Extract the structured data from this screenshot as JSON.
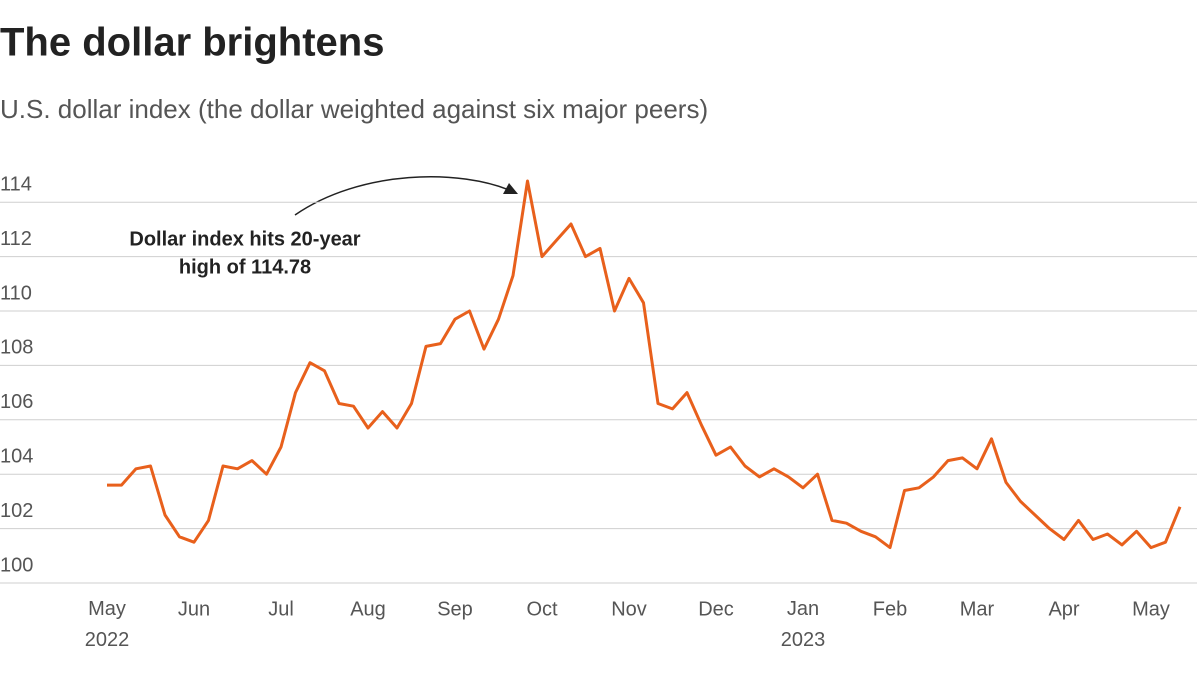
{
  "chart_data": {
    "type": "line",
    "title": "The dollar brightens",
    "subtitle": "U.S. dollar index (the dollar weighted against six major peers)",
    "annotation": [
      "Dollar index hits 20-year",
      "high of 114.78"
    ],
    "categories": [
      "May 2022",
      null,
      null,
      null,
      null,
      null,
      "Jun",
      null,
      null,
      null,
      null,
      null,
      "Jul",
      null,
      null,
      null,
      null,
      null,
      "Aug",
      null,
      null,
      null,
      null,
      null,
      "Sep",
      null,
      null,
      null,
      null,
      null,
      "Oct",
      null,
      null,
      null,
      null,
      null,
      "Nov",
      null,
      null,
      null,
      null,
      null,
      "Dec",
      null,
      null,
      null,
      null,
      null,
      "Jan 2023",
      null,
      null,
      null,
      null,
      null,
      "Feb",
      null,
      null,
      null,
      null,
      null,
      "Mar",
      null,
      null,
      null,
      null,
      null,
      "Apr",
      null,
      null,
      null,
      null,
      null,
      "May",
      null,
      null
    ],
    "series": [
      {
        "name": "U.S. dollar index",
        "color": "#e8601c",
        "values": [
          103.6,
          103.6,
          104.2,
          104.3,
          102.5,
          101.7,
          101.5,
          102.3,
          104.3,
          104.2,
          104.5,
          104.0,
          105.0,
          107.0,
          108.1,
          107.8,
          106.6,
          106.5,
          105.7,
          106.3,
          105.7,
          106.6,
          108.7,
          108.8,
          109.7,
          110.0,
          108.6,
          109.7,
          111.3,
          114.78,
          112.0,
          112.6,
          113.2,
          112.0,
          112.3,
          110.0,
          111.2,
          110.3,
          106.6,
          106.4,
          107.0,
          105.8,
          104.7,
          105.0,
          104.3,
          103.9,
          104.2,
          103.9,
          103.5,
          104.0,
          102.3,
          102.2,
          101.9,
          101.7,
          101.3,
          103.4,
          103.5,
          103.9,
          104.5,
          104.6,
          104.2,
          105.3,
          103.7,
          103.0,
          102.5,
          102.0,
          101.6,
          102.3,
          101.6,
          101.8,
          101.4,
          101.9,
          101.3,
          101.5,
          102.8
        ]
      }
    ],
    "ylim": [
      100,
      115
    ],
    "yticks": [
      100,
      102,
      104,
      106,
      108,
      110,
      112,
      114
    ],
    "grid": true
  }
}
